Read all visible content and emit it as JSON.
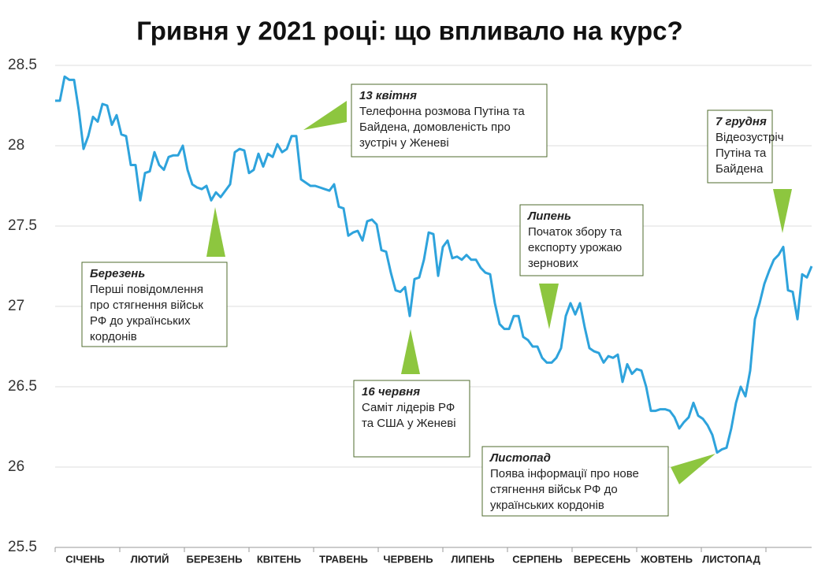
{
  "chart_data": {
    "type": "line",
    "title": "Гривня у 2021 році: що впливало на курс?",
    "months": [
      "СІЧЕНЬ",
      "ЛЮТИЙ",
      "БЕРЕЗЕНЬ",
      "КВІТЕНЬ",
      "ТРАВЕНЬ",
      "ЧЕРВЕНЬ",
      "ЛИПЕНЬ",
      "СЕРПЕНЬ",
      "ВЕРЕСЕНЬ",
      "ЖОВТЕНЬ",
      "ЛИСТОПАД",
      null
    ],
    "color": "#2ea3dc",
    "values": [
      28.28,
      28.28,
      28.43,
      28.41,
      28.41,
      28.22,
      27.98,
      28.06,
      28.18,
      28.15,
      28.26,
      28.25,
      28.13,
      28.19,
      28.07,
      28.06,
      27.88,
      27.88,
      27.66,
      27.83,
      27.84,
      27.96,
      27.88,
      27.85,
      27.93,
      27.94,
      27.94,
      28.0,
      27.85,
      27.76,
      27.74,
      27.73,
      27.75,
      27.66,
      27.71,
      27.68,
      27.72,
      27.76,
      27.96,
      27.98,
      27.97,
      27.83,
      27.85,
      27.95,
      27.87,
      27.95,
      27.93,
      28.01,
      27.96,
      27.98,
      28.06,
      28.06,
      27.79,
      27.77,
      27.75,
      27.75,
      27.74,
      27.73,
      27.72,
      27.76,
      27.62,
      27.61,
      27.44,
      27.46,
      27.47,
      27.41,
      27.53,
      27.54,
      27.51,
      27.35,
      27.34,
      27.21,
      27.1,
      27.09,
      27.12,
      26.94,
      27.17,
      27.18,
      27.29,
      27.46,
      27.45,
      27.19,
      27.37,
      27.41,
      27.3,
      27.31,
      27.29,
      27.32,
      27.29,
      27.29,
      27.24,
      27.21,
      27.2,
      27.02,
      26.89,
      26.86,
      26.86,
      26.94,
      26.94,
      26.81,
      26.79,
      26.75,
      26.75,
      26.68,
      26.65,
      26.65,
      26.68,
      26.74,
      26.94,
      27.02,
      26.95,
      27.02,
      26.87,
      26.74,
      26.72,
      26.71,
      26.65,
      26.69,
      26.68,
      26.7,
      26.53,
      26.64,
      26.58,
      26.61,
      26.6,
      26.5,
      26.35,
      26.35,
      26.36,
      26.36,
      26.35,
      26.31,
      26.24,
      26.28,
      26.31,
      26.4,
      26.32,
      26.3,
      26.26,
      26.2,
      26.09,
      26.11,
      26.12,
      26.24,
      26.4,
      26.5,
      26.44,
      26.6,
      26.92,
      27.02,
      27.14,
      27.22,
      27.29,
      27.32,
      27.37,
      27.1,
      27.09,
      26.92,
      27.2,
      27.18,
      27.25
    ],
    "ylim": [
      25.5,
      28.5
    ],
    "yticks": [
      25.5,
      26,
      26.5,
      27,
      27.5,
      28,
      28.5
    ],
    "grid": true,
    "annotations": [
      {
        "title": "13 квітня",
        "lines": [
          "Телефонна розмова Путіна та",
          "Байдена, домовленість про",
          "зустріч у Женеві"
        ]
      },
      {
        "title": "Березень",
        "lines": [
          "Перші повідомлення",
          "про стягнення військ",
          "РФ до українських",
          "кордонів"
        ]
      },
      {
        "title": "16 червня",
        "lines": [
          "Саміт лідерів РФ",
          "та США у Женеві"
        ]
      },
      {
        "title": "Липень",
        "lines": [
          "Початок збору та",
          "експорту урожаю",
          "зернових"
        ]
      },
      {
        "title": "7 грудня",
        "lines": [
          "Відеозустріч",
          "Путіна та",
          "Байдена"
        ]
      },
      {
        "title": "Листопад",
        "lines": [
          "Поява інформації про нове",
          "стягнення військ РФ до",
          "українських кордонів"
        ]
      }
    ]
  }
}
